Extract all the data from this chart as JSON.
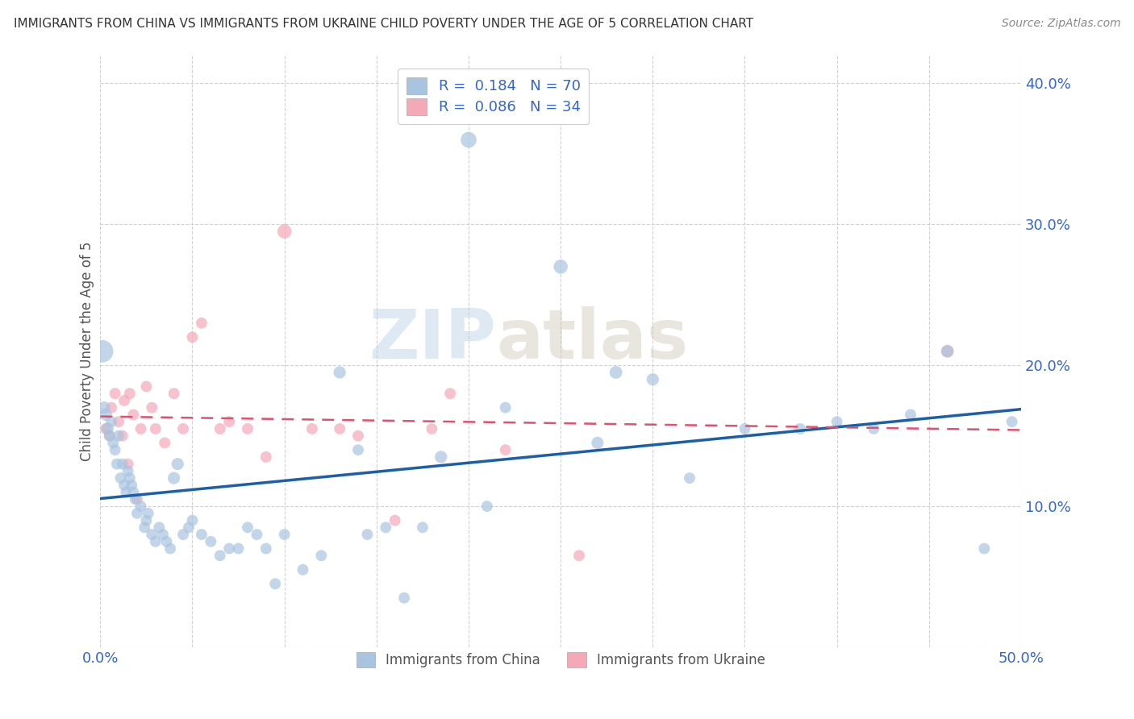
{
  "title": "IMMIGRANTS FROM CHINA VS IMMIGRANTS FROM UKRAINE CHILD POVERTY UNDER THE AGE OF 5 CORRELATION CHART",
  "source": "Source: ZipAtlas.com",
  "ylabel": "Child Poverty Under the Age of 5",
  "xlim": [
    0,
    0.5
  ],
  "ylim": [
    0,
    0.42
  ],
  "xticks": [
    0.0,
    0.05,
    0.1,
    0.15,
    0.2,
    0.25,
    0.3,
    0.35,
    0.4,
    0.45,
    0.5
  ],
  "yticks": [
    0.0,
    0.1,
    0.2,
    0.3,
    0.4
  ],
  "china_R": 0.184,
  "china_N": 70,
  "ukraine_R": 0.086,
  "ukraine_N": 34,
  "china_color": "#a8c4e0",
  "ukraine_color": "#f4a8b8",
  "china_line_color": "#1a5fa8",
  "ukraine_line_color": "#e05070",
  "watermark_zip": "ZIP",
  "watermark_atlas": "atlas",
  "china_x": [
    0.001,
    0.002,
    0.003,
    0.004,
    0.005,
    0.006,
    0.007,
    0.008,
    0.009,
    0.01,
    0.011,
    0.012,
    0.013,
    0.014,
    0.015,
    0.016,
    0.017,
    0.018,
    0.019,
    0.02,
    0.022,
    0.024,
    0.025,
    0.026,
    0.028,
    0.03,
    0.032,
    0.034,
    0.036,
    0.038,
    0.04,
    0.042,
    0.045,
    0.048,
    0.05,
    0.055,
    0.06,
    0.065,
    0.07,
    0.075,
    0.08,
    0.085,
    0.09,
    0.095,
    0.1,
    0.11,
    0.12,
    0.13,
    0.14,
    0.145,
    0.155,
    0.165,
    0.175,
    0.185,
    0.2,
    0.21,
    0.22,
    0.25,
    0.27,
    0.28,
    0.3,
    0.32,
    0.35,
    0.38,
    0.4,
    0.42,
    0.44,
    0.46,
    0.48,
    0.495
  ],
  "china_y": [
    0.21,
    0.17,
    0.165,
    0.155,
    0.15,
    0.16,
    0.145,
    0.14,
    0.13,
    0.15,
    0.12,
    0.13,
    0.115,
    0.11,
    0.125,
    0.12,
    0.115,
    0.11,
    0.105,
    0.095,
    0.1,
    0.085,
    0.09,
    0.095,
    0.08,
    0.075,
    0.085,
    0.08,
    0.075,
    0.07,
    0.12,
    0.13,
    0.08,
    0.085,
    0.09,
    0.08,
    0.075,
    0.065,
    0.07,
    0.07,
    0.085,
    0.08,
    0.07,
    0.045,
    0.08,
    0.055,
    0.065,
    0.195,
    0.14,
    0.08,
    0.085,
    0.035,
    0.085,
    0.135,
    0.36,
    0.1,
    0.17,
    0.27,
    0.145,
    0.195,
    0.19,
    0.12,
    0.155,
    0.155,
    0.16,
    0.155,
    0.165,
    0.21,
    0.07,
    0.16
  ],
  "ukraine_x": [
    0.003,
    0.005,
    0.006,
    0.008,
    0.01,
    0.012,
    0.013,
    0.015,
    0.016,
    0.018,
    0.02,
    0.022,
    0.025,
    0.028,
    0.03,
    0.035,
    0.04,
    0.045,
    0.05,
    0.055,
    0.065,
    0.07,
    0.08,
    0.09,
    0.1,
    0.115,
    0.13,
    0.14,
    0.16,
    0.18,
    0.19,
    0.22,
    0.26,
    0.46
  ],
  "ukraine_y": [
    0.155,
    0.15,
    0.17,
    0.18,
    0.16,
    0.15,
    0.175,
    0.13,
    0.18,
    0.165,
    0.105,
    0.155,
    0.185,
    0.17,
    0.155,
    0.145,
    0.18,
    0.155,
    0.22,
    0.23,
    0.155,
    0.16,
    0.155,
    0.135,
    0.295,
    0.155,
    0.155,
    0.15,
    0.09,
    0.155,
    0.18,
    0.14,
    0.065,
    0.21
  ],
  "china_sizes": [
    400,
    120,
    120,
    120,
    100,
    100,
    100,
    100,
    100,
    100,
    100,
    100,
    100,
    100,
    100,
    100,
    100,
    100,
    100,
    100,
    100,
    100,
    100,
    100,
    100,
    100,
    100,
    100,
    100,
    100,
    120,
    120,
    100,
    100,
    100,
    100,
    100,
    100,
    100,
    100,
    100,
    100,
    100,
    100,
    100,
    100,
    100,
    120,
    100,
    100,
    100,
    100,
    100,
    120,
    200,
    100,
    100,
    160,
    120,
    130,
    120,
    100,
    100,
    100,
    100,
    100,
    100,
    120,
    100,
    100
  ],
  "ukraine_sizes": [
    100,
    100,
    100,
    100,
    100,
    100,
    100,
    100,
    100,
    100,
    100,
    100,
    100,
    100,
    100,
    100,
    100,
    100,
    100,
    100,
    100,
    100,
    100,
    100,
    160,
    100,
    100,
    100,
    100,
    100,
    100,
    100,
    100,
    130
  ]
}
